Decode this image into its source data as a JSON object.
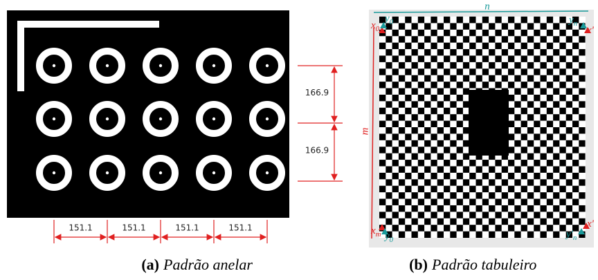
{
  "panel_a": {
    "dimensions_vertical": [
      "166.9",
      "166.9"
    ],
    "dimensions_horizontal": [
      "151.1",
      "151.1",
      "151.1",
      "151.1"
    ],
    "caption_label": "(a)",
    "caption_text": "Padrão anelar"
  },
  "panel_b": {
    "top_label": "n",
    "left_label": "m",
    "corner_labels": [
      {
        "base": "x",
        "sub": "0"
      },
      {
        "base": "y",
        "sub": "0"
      },
      {
        "base": "y",
        "sub": "n"
      },
      {
        "base": "x'",
        "sub": ""
      },
      {
        "base": "x",
        "sub": "m"
      },
      {
        "base": "y",
        "sub": "0"
      },
      {
        "base": "y'",
        "sub": "n"
      },
      {
        "base": "x'",
        "sub": ""
      }
    ],
    "caption_label": "(b)",
    "caption_text": "Padrão tabuleiro"
  }
}
